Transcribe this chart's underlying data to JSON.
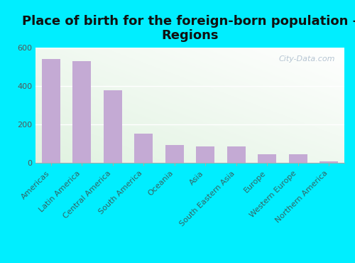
{
  "title": "Place of birth for the foreign-born population -\nRegions",
  "categories": [
    "Americas",
    "Latin America",
    "Central America",
    "South America",
    "Oceania",
    "Asia",
    "South Eastern Asia",
    "Europe",
    "Western Europe",
    "Northern America"
  ],
  "values": [
    541,
    527,
    378,
    152,
    95,
    87,
    87,
    46,
    46,
    9
  ],
  "bar_color": "#c4aad4",
  "bg_color": "#00eeff",
  "ylim": [
    0,
    600
  ],
  "yticks": [
    0,
    200,
    400,
    600
  ],
  "title_fontsize": 13,
  "tick_fontsize": 8,
  "watermark": "City-Data.com",
  "grad_colors": [
    "#e8f5e0",
    "#f8fdf5",
    "#ffffff"
  ],
  "bar_width": 0.6
}
